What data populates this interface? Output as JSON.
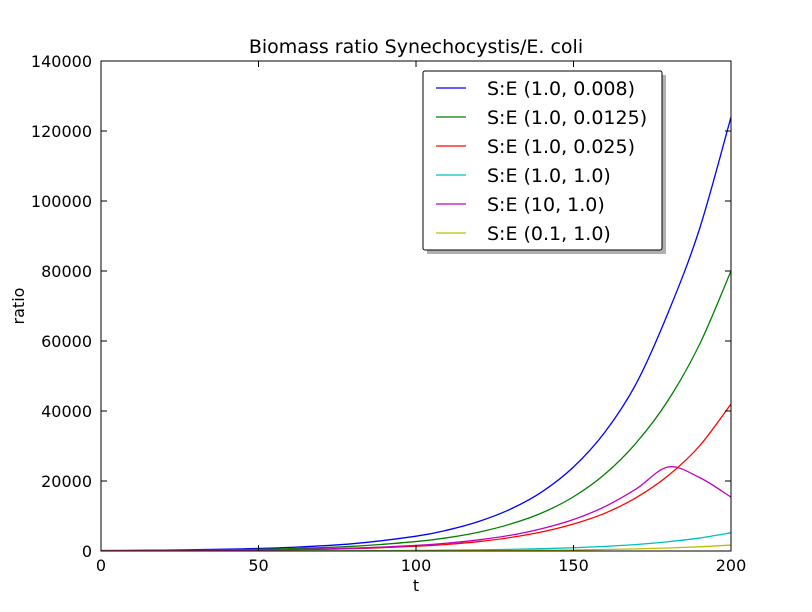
{
  "chart_data": {
    "type": "line",
    "title": "Biomass ratio Synechocystis/E. coli",
    "xlabel": "t",
    "ylabel": "ratio",
    "xlim": [
      0,
      200
    ],
    "ylim": [
      0,
      140000
    ],
    "xticks": [
      0,
      50,
      100,
      150,
      200
    ],
    "yticks": [
      0,
      20000,
      40000,
      60000,
      80000,
      100000,
      120000,
      140000
    ],
    "grid": false,
    "legend_position": "top-right",
    "x": [
      0,
      20,
      40,
      60,
      80,
      100,
      110,
      120,
      130,
      140,
      150,
      160,
      170,
      180,
      190,
      200
    ],
    "series": [
      {
        "name": "S:E (1.0, 0.008)",
        "color": "#0000ff",
        "values": [
          125,
          253,
          511,
          1034,
          2091,
          4229,
          5980,
          8460,
          11960,
          16920,
          24000,
          34000,
          48000,
          68000,
          92000,
          124000
        ]
      },
      {
        "name": "S:E (1.0, 0.0125)",
        "color": "#008000",
        "values": [
          80,
          160,
          330,
          660,
          1340,
          2700,
          3800,
          5400,
          7700,
          10900,
          15500,
          22000,
          31000,
          43000,
          59000,
          80000
        ]
      },
      {
        "name": "S:E (1.0, 0.025)",
        "color": "#ff0000",
        "values": [
          40,
          80,
          160,
          330,
          670,
          1350,
          1900,
          2700,
          3850,
          5450,
          7700,
          10800,
          15300,
          21500,
          30000,
          42000
        ]
      },
      {
        "name": "S:E (1.0, 1.0)",
        "color": "#00bfbf",
        "values": [
          5,
          10,
          20,
          40,
          80,
          165,
          230,
          330,
          465,
          660,
          930,
          1320,
          1860,
          2650,
          3700,
          5200
        ]
      },
      {
        "name": "S:E (10, 1.0)",
        "color": "#bf00bf",
        "values": [
          50,
          100,
          200,
          400,
          800,
          1600,
          2250,
          3200,
          4500,
          6400,
          9000,
          12700,
          17800,
          24000,
          21000,
          15400
        ]
      },
      {
        "name": "S:E (0.1, 1.0)",
        "color": "#bfbf00",
        "values": [
          1,
          3,
          6,
          13,
          26,
          52,
          75,
          105,
          150,
          210,
          300,
          420,
          600,
          850,
          1200,
          1700
        ]
      }
    ]
  }
}
